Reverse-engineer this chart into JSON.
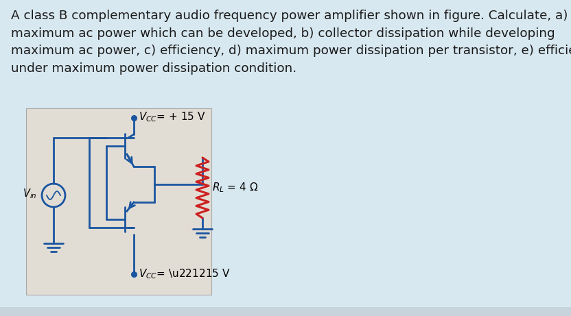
{
  "bg_color": "#d8e8f0",
  "text_color": "#1a1a1a",
  "question_text": "A class B complementary audio frequency power amplifier shown in figure. Calculate, a)\nmaximum ac power which can be developed, b) collector dissipation while developing\nmaximum ac power, c) efficiency, d) maximum power dissipation per transistor, e) efficiency\nunder maximum power dissipation condition.",
  "circuit_bg": "#e2ddd4",
  "circuit_border": "#aaaaaa",
  "blue_color": "#1a55a0",
  "red_color": "#cc2020",
  "bottom_bar_color": "#c8d4dc",
  "font_size_main": 13.2
}
